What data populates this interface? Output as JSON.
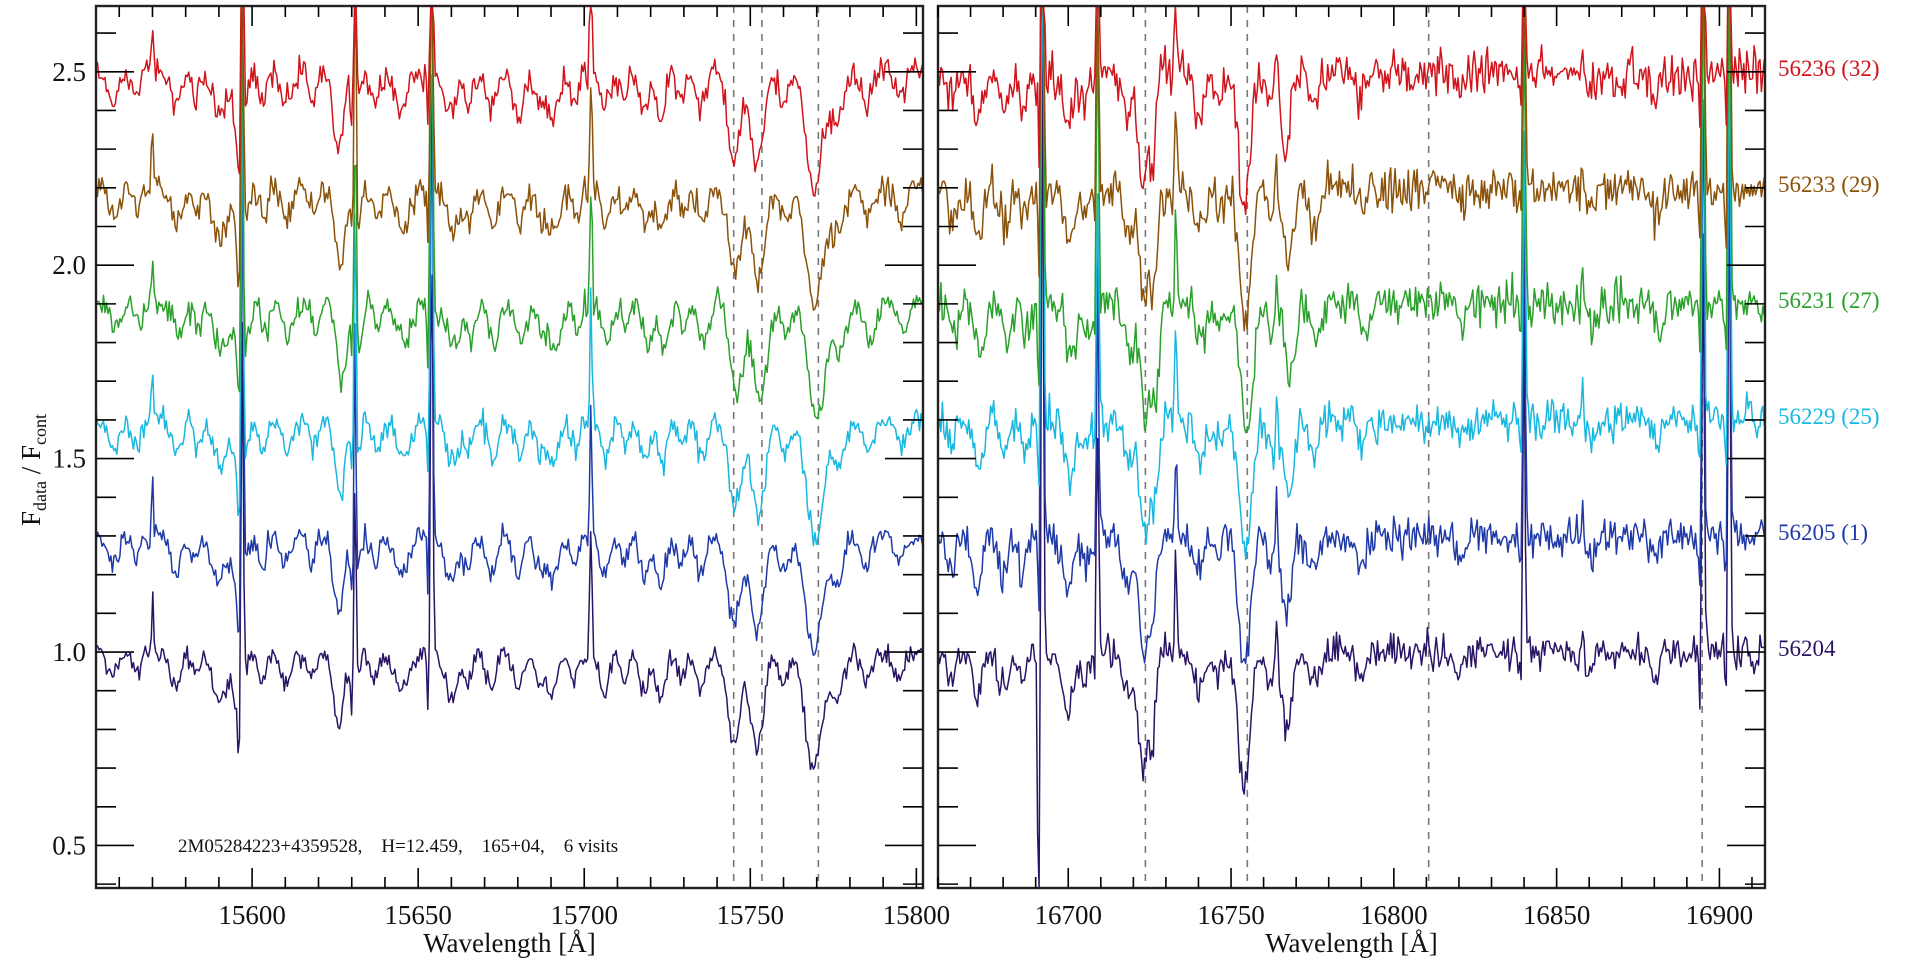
{
  "chart_data": {
    "type": "line",
    "ylabel_main": "F",
    "ylabel_sub1": "data",
    "ylabel_sep": " / F",
    "ylabel_sub2": "cont",
    "ylim": [
      0.39,
      2.67
    ],
    "yticks": [
      0.5,
      1.0,
      1.5,
      2.0,
      2.5
    ],
    "ytick_labels": [
      "0.5",
      "1.0",
      "1.5",
      "2.0",
      "2.5"
    ],
    "annotation": "2M05284223+4359528,    H=12.459,    165+04,    6 visits",
    "panels": [
      {
        "xlabel": "Wavelength [Å]",
        "xlim": [
          15553,
          15802
        ],
        "xticks": [
          15600,
          15650,
          15700,
          15750,
          15800
        ],
        "xtick_labels": [
          "15600",
          "15650",
          "15700",
          "15750",
          "15800"
        ],
        "guides": [
          15745,
          15753.5,
          15770.5
        ],
        "noise": 0.014,
        "absorption": [
          [
            15558,
            0.07,
            1.5
          ],
          [
            15565,
            0.06,
            1.2
          ],
          [
            15577,
            0.09,
            1.5
          ],
          [
            15583,
            0.06,
            1.2
          ],
          [
            15590,
            0.12,
            2
          ],
          [
            15596,
            0.18,
            1.5
          ],
          [
            15603,
            0.08,
            1.2
          ],
          [
            15610,
            0.08,
            1.5
          ],
          [
            15618,
            0.06,
            1.2
          ],
          [
            15626,
            0.2,
            1.5
          ],
          [
            15631,
            0.14,
            1
          ],
          [
            15637,
            0.07,
            1.2
          ],
          [
            15645,
            0.1,
            2
          ],
          [
            15660,
            0.11,
            2
          ],
          [
            15665,
            0.08,
            1.2
          ],
          [
            15672,
            0.1,
            1.5
          ],
          [
            15680,
            0.1,
            1.5
          ],
          [
            15686,
            0.06,
            1.2
          ],
          [
            15690,
            0.12,
            2
          ],
          [
            15697,
            0.07,
            1.2
          ],
          [
            15706,
            0.1,
            1.5
          ],
          [
            15712,
            0.06,
            1.2
          ],
          [
            15718,
            0.1,
            1.5
          ],
          [
            15723,
            0.12,
            1.5
          ],
          [
            15729,
            0.07,
            1.2
          ],
          [
            15735,
            0.1,
            1.5
          ],
          [
            15745,
            0.22,
            2
          ],
          [
            15752,
            0.25,
            2
          ],
          [
            15760,
            0.08,
            1.5
          ],
          [
            15769,
            0.3,
            2.5
          ],
          [
            15776,
            0.12,
            2
          ],
          [
            15785,
            0.08,
            1.5
          ],
          [
            15795,
            0.07,
            1.5
          ]
        ],
        "emission": [
          [
            15570,
            0.15
          ],
          [
            15597,
            1.3
          ],
          [
            15631,
            0.8
          ],
          [
            15654,
            1.6
          ],
          [
            15702,
            0.4
          ]
        ]
      },
      {
        "xlabel": "Wavelength [Å]",
        "xlim": [
          16660,
          16914
        ],
        "xticks": [
          16700,
          16750,
          16800,
          16850,
          16900
        ],
        "xtick_labels": [
          "16700",
          "16750",
          "16800",
          "16850",
          "16900"
        ],
        "guides": [
          16723.7,
          16755,
          16810.7,
          16894.7
        ],
        "noise": 0.022,
        "absorption": [
          [
            16664,
            0.08,
            1.2
          ],
          [
            16672,
            0.12,
            1.5
          ],
          [
            16680,
            0.1,
            1.5
          ],
          [
            16686,
            0.08,
            1.2
          ],
          [
            16700,
            0.15,
            1.5
          ],
          [
            16705,
            0.07,
            1.2
          ],
          [
            16718,
            0.12,
            1.5
          ],
          [
            16723,
            0.3,
            1.5
          ],
          [
            16726,
            0.2,
            1
          ],
          [
            16740,
            0.1,
            1.5
          ],
          [
            16746,
            0.06,
            1.2
          ],
          [
            16754,
            0.35,
            1.8
          ],
          [
            16762,
            0.08,
            1.2
          ],
          [
            16767,
            0.2,
            1.5
          ],
          [
            16775,
            0.08,
            1.5
          ],
          [
            16790,
            0.06,
            1.5
          ],
          [
            16820,
            0.05,
            1.5
          ],
          [
            16860,
            0.05,
            1.5
          ],
          [
            16880,
            0.06,
            1.5
          ]
        ],
        "emission": [
          [
            16692,
            2.5
          ],
          [
            16709,
            0.8
          ],
          [
            16733,
            0.3
          ],
          [
            16764,
            0.15
          ],
          [
            16840,
            1.0
          ],
          [
            16858,
            0.12
          ],
          [
            16895,
            1.5
          ],
          [
            16903,
            1.5
          ]
        ]
      }
    ],
    "series": [
      {
        "label": "56204",
        "offset": 1.0,
        "shift": 0,
        "color": "#2a1466"
      },
      {
        "label": "56205 (1)",
        "offset": 1.3,
        "shift": 0,
        "color": "#1f3aa8"
      },
      {
        "label": "56229 (25)",
        "offset": 1.6,
        "shift": 0.5,
        "color": "#18b8e0"
      },
      {
        "label": "56231 (27)",
        "offset": 1.9,
        "shift": 1,
        "color": "#2ca02c"
      },
      {
        "label": "56233 (29)",
        "offset": 2.2,
        "shift": 0.5,
        "color": "#8b5209"
      },
      {
        "label": "56236 (32)",
        "offset": 2.5,
        "shift": 0,
        "color": "#d0141c"
      }
    ]
  }
}
